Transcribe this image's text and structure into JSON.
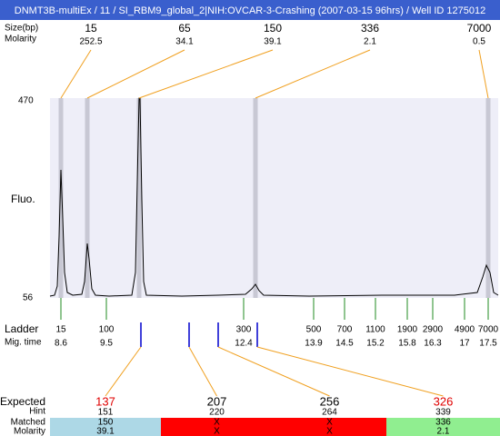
{
  "header": {
    "title": "DNMT3B-multiEx / 11 / SI_RBM9_global_2|NIH:OVCAR-3-Crashing (2007-03-15 96hrs) / Well ID 1275012"
  },
  "peaks": {
    "size_label": "Size(bp)",
    "molarity_label": "Molarity",
    "sizes": [
      15,
      65,
      150,
      336,
      7000
    ],
    "molarities": [
      252.5,
      34.1,
      39.1,
      2.1,
      0.5
    ]
  },
  "plot": {
    "y_label": "Fluo.",
    "y_max": 470,
    "y_min": 56
  },
  "ladder": {
    "label": "Ladder",
    "time_label": "Mig. time",
    "sizes": [
      15,
      100,
      300,
      500,
      700,
      1100,
      1900,
      2900,
      4900,
      7000
    ],
    "times": [
      8.6,
      9.5,
      12.4,
      13.9,
      14.5,
      15.2,
      15.8,
      16.3,
      17,
      17.5
    ]
  },
  "table": {
    "row_labels": {
      "expected": "Expected",
      "hint": "Hint",
      "matched": "Matched",
      "molarity": "Molarity"
    },
    "columns": [
      {
        "expected": 137,
        "hint": 151,
        "matched": 150,
        "molarity": 39.1
      },
      {
        "expected": 207,
        "hint": 220,
        "matched": "X",
        "molarity": "X"
      },
      {
        "expected": 256,
        "hint": 264,
        "matched": "X",
        "molarity": "X"
      },
      {
        "expected": 326,
        "hint": 339,
        "matched": 336,
        "molarity": 2.1
      }
    ]
  }
}
